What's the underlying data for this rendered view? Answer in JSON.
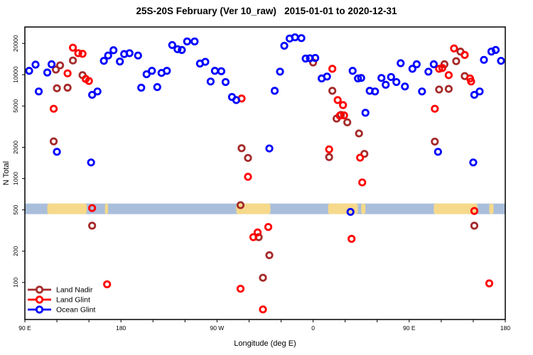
{
  "title": "25S-20S February (Ver 10_raw)   2015-01-01 to 2020-12-31",
  "chart_data": {
    "type": "scatter",
    "title": "25S-20S February (Ver 10_raw)   2015-01-01 to 2020-12-31",
    "xlabel": "Longitude (deg E)",
    "ylabel": "N Total",
    "x_axis": {
      "range": [
        90,
        540
      ],
      "minor_tick_step": 30,
      "major_ticks": [
        {
          "value": 90,
          "label": "90 E"
        },
        {
          "value": 180,
          "label": "180"
        },
        {
          "value": 270,
          "label": "90 W"
        },
        {
          "value": 360,
          "label": "0"
        },
        {
          "value": 450,
          "label": "90 E"
        },
        {
          "value": 540,
          "label": "180"
        }
      ]
    },
    "y_axis": {
      "scale": "log",
      "range": [
        44,
        28800
      ],
      "ticks": [
        100,
        200,
        500,
        1000,
        2000,
        5000,
        10000,
        20000
      ]
    },
    "land_band": {
      "description": "25S-20S latitude strip map: ocean with land patches vs longitude",
      "ocean_color": "#a9bedb",
      "land_color": "#f6d98a",
      "value_range": [
        455,
        575
      ],
      "patches_lon": [
        [
          111,
          148
        ],
        [
          165,
          168
        ],
        [
          288,
          320
        ],
        [
          374,
          402
        ],
        [
          405,
          409
        ],
        [
          473,
          514
        ],
        [
          525,
          529
        ]
      ]
    },
    "marker": {
      "shape": "open-circle",
      "radius": 4.2,
      "stroke_width": 2.8
    },
    "legend": {
      "position": "bottom-left",
      "items": [
        "Land Nadir",
        "Land Glint",
        "Ocean Glint"
      ]
    },
    "series": [
      {
        "name": "Land Nadir",
        "color": "#A52A2A",
        "points": [
          [
            117,
            2280
          ],
          [
            119,
            11200
          ],
          [
            120,
            7400
          ],
          [
            123,
            12300
          ],
          [
            130,
            7500
          ],
          [
            135,
            13700
          ],
          [
            144,
            9900
          ],
          [
            153,
            352
          ],
          [
            292,
            555
          ],
          [
            293,
            1960
          ],
          [
            299,
            1580
          ],
          [
            309,
            273
          ],
          [
            313,
            111
          ],
          [
            319,
            183
          ],
          [
            360,
            13100
          ],
          [
            375,
            1610
          ],
          [
            378,
            7000
          ],
          [
            382,
            3780
          ],
          [
            386,
            4100
          ],
          [
            392,
            3480
          ],
          [
            403,
            2720
          ],
          [
            408,
            1730
          ],
          [
            474,
            2270
          ],
          [
            478,
            7200
          ],
          [
            483,
            12600
          ],
          [
            487,
            7300
          ],
          [
            494,
            13500
          ],
          [
            498,
            16700
          ],
          [
            502,
            9700
          ],
          [
            511,
            352
          ]
        ]
      },
      {
        "name": "Land Glint",
        "color": "#FF0000",
        "points": [
          [
            117,
            4700
          ],
          [
            130,
            10300
          ],
          [
            135,
            18200
          ],
          [
            140,
            16100
          ],
          [
            144,
            15900
          ],
          [
            147,
            9100
          ],
          [
            150,
            8700
          ],
          [
            153,
            520
          ],
          [
            167,
            96
          ],
          [
            292,
            87
          ],
          [
            293,
            5900
          ],
          [
            299,
            1040
          ],
          [
            304,
            273
          ],
          [
            308,
            303
          ],
          [
            313,
            55
          ],
          [
            318,
            342
          ],
          [
            375,
            1910
          ],
          [
            378,
            11400
          ],
          [
            383,
            5700
          ],
          [
            385,
            4030
          ],
          [
            388,
            5100
          ],
          [
            389,
            4060
          ],
          [
            396,
            263
          ],
          [
            404,
            1590
          ],
          [
            406,
            918
          ],
          [
            474,
            4700
          ],
          [
            478,
            11400
          ],
          [
            481,
            11600
          ],
          [
            487,
            9900
          ],
          [
            492,
            17900
          ],
          [
            502,
            15500
          ],
          [
            507,
            9200
          ],
          [
            508,
            8600
          ],
          [
            511,
            488
          ],
          [
            525,
            98
          ]
        ]
      },
      {
        "name": "Ocean Glint",
        "color": "#0000FF",
        "points": [
          [
            94,
            10900
          ],
          [
            100,
            12500
          ],
          [
            103,
            6900
          ],
          [
            111,
            10500
          ],
          [
            115,
            12600
          ],
          [
            120,
            1810
          ],
          [
            152,
            1430
          ],
          [
            153,
            6400
          ],
          [
            158,
            6900
          ],
          [
            164,
            13600
          ],
          [
            168,
            15300
          ],
          [
            173,
            17200
          ],
          [
            179,
            13400
          ],
          [
            183,
            15800
          ],
          [
            188,
            16100
          ],
          [
            196,
            15300
          ],
          [
            199,
            7500
          ],
          [
            204,
            10100
          ],
          [
            209,
            10900
          ],
          [
            214,
            7600
          ],
          [
            218,
            10400
          ],
          [
            223,
            10900
          ],
          [
            228,
            19300
          ],
          [
            233,
            17600
          ],
          [
            237,
            17300
          ],
          [
            242,
            20900
          ],
          [
            249,
            20900
          ],
          [
            254,
            12800
          ],
          [
            259,
            13300
          ],
          [
            264,
            8600
          ],
          [
            268,
            10900
          ],
          [
            274,
            10800
          ],
          [
            278,
            8500
          ],
          [
            284,
            6100
          ],
          [
            288,
            5700
          ],
          [
            319,
            1950
          ],
          [
            324,
            7000
          ],
          [
            329,
            10700
          ],
          [
            333,
            19000
          ],
          [
            338,
            22300
          ],
          [
            343,
            22900
          ],
          [
            349,
            22500
          ],
          [
            353,
            14300
          ],
          [
            357,
            14400
          ],
          [
            362,
            14500
          ],
          [
            368,
            9200
          ],
          [
            373,
            9600
          ],
          [
            395,
            478
          ],
          [
            397,
            10900
          ],
          [
            402,
            9200
          ],
          [
            405,
            9300
          ],
          [
            409,
            4300
          ],
          [
            413,
            7000
          ],
          [
            418,
            6900
          ],
          [
            424,
            9300
          ],
          [
            428,
            8000
          ],
          [
            433,
            9500
          ],
          [
            438,
            8500
          ],
          [
            442,
            12900
          ],
          [
            446,
            7700
          ],
          [
            453,
            11400
          ],
          [
            457,
            12600
          ],
          [
            462,
            6900
          ],
          [
            468,
            10700
          ],
          [
            473,
            12600
          ],
          [
            477,
            1810
          ],
          [
            510,
            1430
          ],
          [
            511,
            6400
          ],
          [
            516,
            6900
          ],
          [
            520,
            13900
          ],
          [
            527,
            16700
          ],
          [
            531,
            17300
          ],
          [
            536,
            13600
          ]
        ]
      }
    ]
  }
}
